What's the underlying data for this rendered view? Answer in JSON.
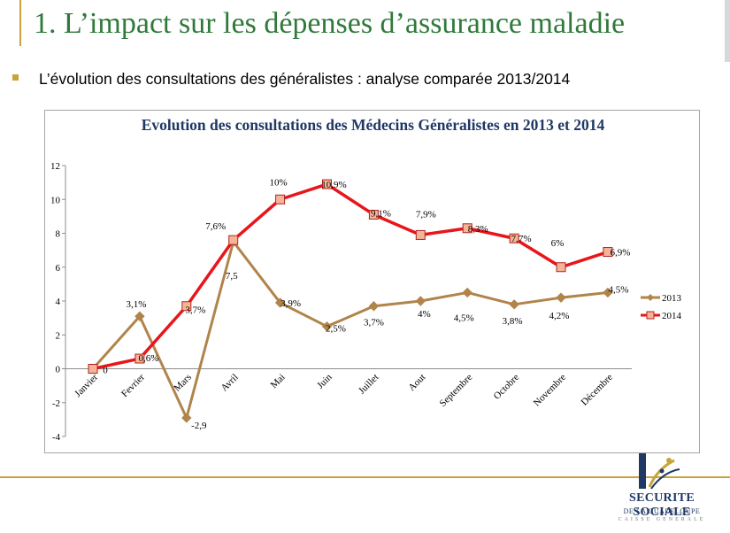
{
  "slide": {
    "title": "1. L’impact sur les dépenses d’assurance maladie",
    "subtitle": "L’évolution des consultations des généralistes : analyse comparée 2013/2014"
  },
  "logo": {
    "name": "SECURITE SOCIALE",
    "sub": "DE LA GUADELOUPE",
    "sub2": "CAISSE GENERALE"
  },
  "colors": {
    "series_2013": "#b0844a",
    "series_2014": "#e8161b",
    "marker_2014_fill": "#f4b596",
    "title_green": "#2f7a3a",
    "chart_title": "#1f3864",
    "accent_gold": "#c9a33a"
  },
  "chart_data": {
    "type": "line",
    "title": "Evolution des consultations des Médecins Généralistes  en 2013 et 2014",
    "categories": [
      "Janvier",
      "Fevrier",
      "Mars",
      "Avril",
      "Mai",
      "Juin",
      "Juillet",
      "Aout",
      "Septembre",
      "Octobre",
      "Novembre",
      "Décembre"
    ],
    "series": [
      {
        "name": "2013",
        "values": [
          0,
          3.1,
          -2.9,
          7.5,
          3.9,
          2.5,
          3.7,
          4,
          4.5,
          3.8,
          4.2,
          4.5
        ],
        "labels": [
          "0",
          "3,1%",
          "-2,9",
          "7,5",
          "3,9%",
          "2,5%",
          "3,7%",
          "4%",
          "4,5%",
          "3,8%",
          "4,2%",
          "4,5%"
        ],
        "marker": "diamond"
      },
      {
        "name": "2014",
        "values": [
          0,
          0.6,
          3.7,
          7.6,
          10,
          10.9,
          9.1,
          7.9,
          8.3,
          7.7,
          6,
          6.9
        ],
        "labels": [
          "",
          "0,6%",
          "3,7%",
          "7,6%",
          "10%",
          "10,9%",
          "9,1%",
          "7,9%",
          "8,3%",
          "7,7%",
          "6%",
          "6,9%"
        ],
        "marker": "square"
      }
    ],
    "yticks": [
      "12",
      "10",
      "8",
      "6",
      "4",
      "2",
      "0",
      "-2",
      "-4"
    ],
    "ylim": [
      -4,
      12
    ],
    "grid": false,
    "legend": "right"
  }
}
